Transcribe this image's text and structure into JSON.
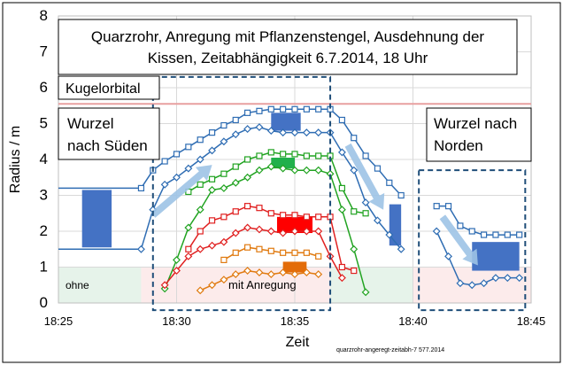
{
  "chart_data": {
    "type": "line",
    "title_lines": [
      "Quarzrohr, Anregung mit Pflanzenstengel,  Ausdehnung der",
      "Kissen, Zeitabhängigkeit 6.7.2014, 18 Uhr"
    ],
    "xlabel": "Zeit",
    "ylabel": "Radius / m",
    "xlim": [
      "18:25",
      "18:45"
    ],
    "ylim": [
      0,
      8
    ],
    "x_ticks": [
      "18:25",
      "18:30",
      "18:35",
      "18:40",
      "18:45"
    ],
    "y_ticks": [
      0,
      1,
      2,
      3,
      4,
      5,
      6,
      7,
      8
    ],
    "grid": true,
    "annotations": {
      "kugelorbital": "Kugelorbital",
      "wurzel_sued_line1": "Wurzel",
      "wurzel_sued_line2": "nach Süden",
      "wurzel_nord_line1": "Wurzel nach",
      "wurzel_nord_line2": "Norden",
      "ohne": "ohne",
      "mit_anregung": "mit   Anregung",
      "footer": "quarzrohr-angeregt-zeitabh-7  577.2014"
    },
    "reference_lines": [
      {
        "name": "Kugelorbital",
        "y": 5.55,
        "color": "#e8a0a0"
      }
    ],
    "series": [
      {
        "color": "#2f6db3",
        "marker": "square",
        "x": [
          "18:28:30",
          "18:29:00",
          "18:29:30",
          "18:30:00",
          "18:30:30",
          "18:31:00",
          "18:31:30",
          "18:32:00",
          "18:32:30",
          "18:33:00",
          "18:33:30",
          "18:34:00",
          "18:34:30",
          "18:35:00",
          "18:35:30",
          "18:36:00",
          "18:36:30",
          "18:37:00",
          "18:37:30",
          "18:38:00",
          "18:38:30",
          "18:39:00",
          "18:39:30"
        ],
        "y": [
          3.2,
          3.7,
          3.95,
          4.15,
          4.35,
          4.55,
          4.75,
          4.95,
          5.1,
          5.3,
          5.35,
          5.4,
          5.4,
          5.4,
          5.4,
          5.4,
          5.4,
          5.1,
          4.6,
          4.1,
          3.75,
          3.35,
          3.0
        ]
      },
      {
        "color": "#2f6db3",
        "marker": "diamond",
        "x": [
          "18:28:30",
          "18:29:00",
          "18:29:30",
          "18:30:00",
          "18:30:30",
          "18:31:00",
          "18:31:30",
          "18:32:00",
          "18:32:30",
          "18:33:00",
          "18:33:30",
          "18:34:00",
          "18:34:30",
          "18:35:00",
          "18:35:30",
          "18:36:00",
          "18:36:30",
          "18:37:00",
          "18:37:30",
          "18:38:00",
          "18:38:30",
          "18:39:00",
          "18:39:30"
        ],
        "y": [
          1.5,
          2.6,
          3.3,
          3.5,
          3.75,
          4.0,
          4.25,
          4.5,
          4.7,
          4.85,
          4.9,
          4.8,
          4.75,
          4.75,
          4.75,
          4.75,
          4.75,
          4.2,
          3.7,
          2.8,
          2.3,
          1.9,
          1.5
        ]
      },
      {
        "color": "#21a321",
        "marker": "square",
        "x": [
          "18:30:30",
          "18:31:00",
          "18:31:30",
          "18:32:00",
          "18:32:30",
          "18:33:00",
          "18:33:30",
          "18:34:00",
          "18:34:30",
          "18:35:00",
          "18:35:30",
          "18:36:00",
          "18:36:30",
          "18:37:00",
          "18:37:30",
          "18:38:00"
        ],
        "y": [
          3.1,
          3.3,
          3.45,
          3.6,
          3.8,
          4.0,
          4.1,
          4.2,
          4.15,
          4.15,
          4.1,
          4.1,
          4.1,
          3.2,
          2.55,
          2.5
        ]
      },
      {
        "color": "#21a321",
        "marker": "diamond",
        "x": [
          "18:29:30",
          "18:30:00",
          "18:30:30",
          "18:31:00",
          "18:31:30",
          "18:32:00",
          "18:32:30",
          "18:33:00",
          "18:33:30",
          "18:34:00",
          "18:34:30",
          "18:35:00",
          "18:35:30",
          "18:36:00",
          "18:36:30",
          "18:37:00",
          "18:37:30",
          "18:38:00"
        ],
        "y": [
          0.4,
          1.2,
          2.1,
          2.6,
          3.15,
          3.2,
          3.35,
          3.5,
          3.7,
          3.8,
          3.75,
          3.7,
          3.7,
          3.7,
          3.6,
          2.6,
          1.5,
          0.3
        ]
      },
      {
        "color": "#e02020",
        "marker": "square",
        "x": [
          "18:30:30",
          "18:31:00",
          "18:31:30",
          "18:32:00",
          "18:32:30",
          "18:33:00",
          "18:33:30",
          "18:34:00",
          "18:34:30",
          "18:35:00",
          "18:35:30",
          "18:36:00",
          "18:36:30",
          "18:37:00",
          "18:37:30"
        ],
        "y": [
          1.5,
          2.0,
          2.3,
          2.4,
          2.55,
          2.7,
          2.65,
          2.5,
          2.45,
          2.45,
          2.4,
          2.4,
          2.4,
          1.0,
          0.9
        ]
      },
      {
        "color": "#e02020",
        "marker": "diamond",
        "x": [
          "18:29:30",
          "18:30:00",
          "18:30:30",
          "18:31:00",
          "18:31:30",
          "18:32:00",
          "18:32:30",
          "18:33:00",
          "18:33:30",
          "18:34:00",
          "18:34:30",
          "18:35:00",
          "18:35:30",
          "18:36:00",
          "18:36:30",
          "18:37:00"
        ],
        "y": [
          0.5,
          0.9,
          1.3,
          1.5,
          1.6,
          1.7,
          1.95,
          2.1,
          2.05,
          2.0,
          1.95,
          2.0,
          2.0,
          2.0,
          1.3,
          0.7
        ]
      },
      {
        "color": "#e07a10",
        "marker": "square",
        "x": [
          "18:32:00",
          "18:32:30",
          "18:33:00",
          "18:33:30",
          "18:34:00",
          "18:34:30",
          "18:35:00",
          "18:35:30",
          "18:36:00"
        ],
        "y": [
          1.2,
          1.4,
          1.55,
          1.5,
          1.45,
          1.4,
          1.4,
          1.4,
          1.3
        ]
      },
      {
        "color": "#e07a10",
        "marker": "diamond",
        "x": [
          "18:31:00",
          "18:31:30",
          "18:32:00",
          "18:32:30",
          "18:33:00",
          "18:33:30",
          "18:34:00",
          "18:34:30",
          "18:35:00",
          "18:35:30",
          "18:36:00"
        ],
        "y": [
          0.35,
          0.5,
          0.65,
          0.8,
          0.9,
          0.85,
          0.8,
          0.85,
          0.8,
          0.85,
          0.8
        ]
      },
      {
        "color": "#2f6db3",
        "marker": "square",
        "x": [
          "18:41:00",
          "18:41:30",
          "18:42:00",
          "18:42:30",
          "18:43:00",
          "18:43:30",
          "18:44:00",
          "18:44:30"
        ],
        "y": [
          2.7,
          2.7,
          2.15,
          2.0,
          1.9,
          1.9,
          1.9,
          1.9
        ]
      },
      {
        "color": "#2f6db3",
        "marker": "diamond",
        "x": [
          "18:41:00",
          "18:41:30",
          "18:42:00",
          "18:42:30",
          "18:43:00",
          "18:43:30",
          "18:44:00",
          "18:44:30"
        ],
        "y": [
          2.0,
          1.3,
          0.55,
          0.5,
          0.55,
          0.7,
          0.7,
          0.7
        ]
      }
    ],
    "baseline_segments": [
      {
        "color": "#2f6db3",
        "x": [
          "18:25:00",
          "18:28:30"
        ],
        "y": [
          3.2,
          3.2
        ]
      },
      {
        "color": "#2f6db3",
        "x": [
          "18:25:00",
          "18:28:30"
        ],
        "y": [
          1.5,
          1.5
        ]
      }
    ],
    "block_bars": [
      {
        "color": "#4472c4",
        "x": [
          "18:26:00",
          "18:27:15"
        ],
        "y": [
          1.55,
          3.15
        ]
      },
      {
        "color": "#4472c4",
        "x": [
          "18:34:00",
          "18:35:15"
        ],
        "y": [
          4.8,
          5.3
        ]
      },
      {
        "color": "#21b04b",
        "x": [
          "18:34:00",
          "18:35:00"
        ],
        "y": [
          3.75,
          4.05
        ]
      },
      {
        "color": "#ff0000",
        "x": [
          "18:34:15",
          "18:35:45"
        ],
        "y": [
          1.95,
          2.4
        ]
      },
      {
        "color": "#e36c09",
        "x": [
          "18:34:30",
          "18:35:30"
        ],
        "y": [
          0.85,
          1.15
        ]
      },
      {
        "color": "#4472c4",
        "x": [
          "18:39:00",
          "18:39:30"
        ],
        "y": [
          1.6,
          2.75
        ]
      },
      {
        "color": "#4472c4",
        "x": [
          "18:42:30",
          "18:44:30"
        ],
        "y": [
          0.9,
          1.7
        ]
      }
    ],
    "shaded_regions": [
      {
        "color": "#e6f3ea",
        "x": [
          "18:25:00",
          "18:28:30"
        ],
        "y": [
          0,
          1.0
        ]
      },
      {
        "color": "#fcebeb",
        "x": [
          "18:28:30",
          "18:36:30"
        ],
        "y": [
          0,
          1.0
        ]
      },
      {
        "color": "#e6f3ea",
        "x": [
          "18:36:30",
          "18:40:00"
        ],
        "y": [
          0,
          1.0
        ]
      },
      {
        "color": "#fcebeb",
        "x": [
          "18:40:00",
          "18:45:00"
        ],
        "y": [
          0,
          1.0
        ]
      }
    ],
    "dashed_boxes": [
      {
        "color": "#1f4e79",
        "x": [
          "18:29:00",
          "18:36:30"
        ],
        "y": [
          -0.2,
          6.3
        ]
      },
      {
        "color": "#1f4e79",
        "x": [
          "18:40:15",
          "18:44:45"
        ],
        "y": [
          -0.2,
          3.7
        ]
      }
    ],
    "arrows": [
      {
        "color": "#9dc3e6",
        "from": [
          "18:29:00",
          2.45
        ],
        "to": [
          "18:31:30",
          3.85
        ]
      },
      {
        "color": "#9dc3e6",
        "from": [
          "18:37:15",
          4.4
        ],
        "to": [
          "18:38:45",
          2.6
        ]
      },
      {
        "color": "#9dc3e6",
        "from": [
          "18:41:15",
          2.4
        ],
        "to": [
          "18:42:45",
          1.05
        ]
      }
    ]
  }
}
